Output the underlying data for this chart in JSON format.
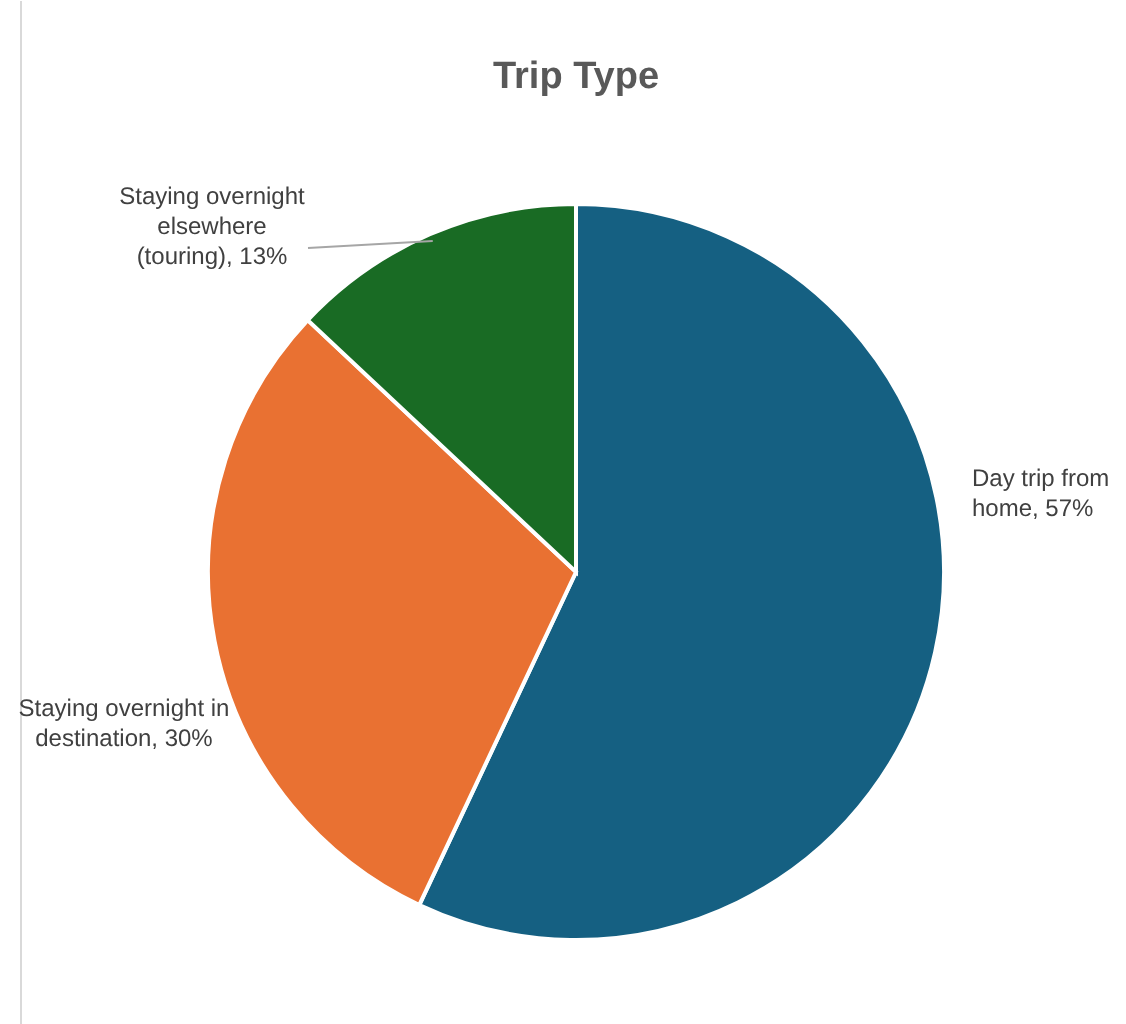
{
  "chart_data": {
    "type": "pie",
    "title": "Trip Type",
    "categories": [
      "Day trip from home",
      "Staying overnight in destination",
      "Staying overnight elsewhere (touring)"
    ],
    "values": [
      57,
      30,
      13
    ],
    "value_labels": [
      "57%",
      "30%",
      "13%"
    ],
    "colors": [
      "#156082",
      "#e97132",
      "#196b24"
    ]
  }
}
